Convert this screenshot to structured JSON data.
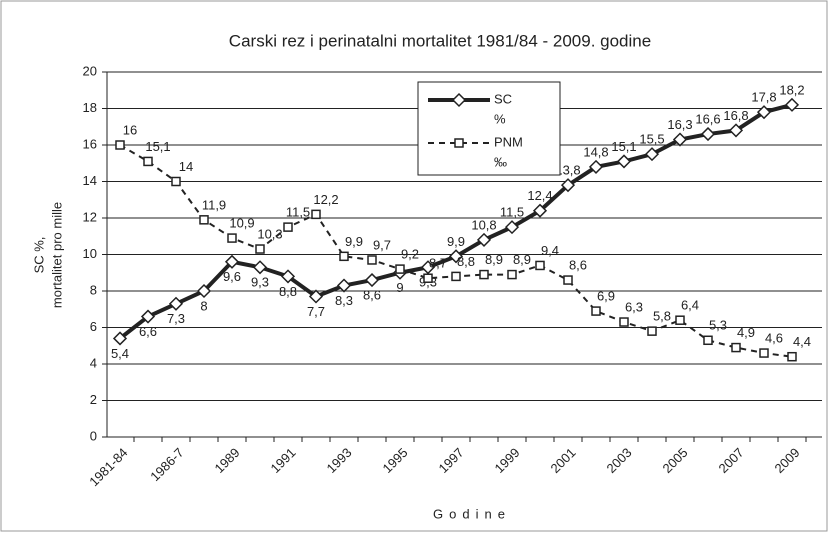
{
  "chart_data": {
    "type": "line",
    "title": "Carski rez i perinatalni mortalitet 1981/84 - 2009. godine",
    "x_label": "Godine",
    "y_label": [
      "SC  %,",
      "mortalitet pro mille"
    ],
    "categories": [
      "1981-84",
      null,
      "1986-7",
      null,
      "1989",
      null,
      "1991",
      null,
      "1993",
      null,
      "1995",
      null,
      "1997",
      null,
      "1999",
      null,
      "2001",
      null,
      "2003",
      null,
      "2005",
      null,
      "2007",
      null,
      "2009"
    ],
    "series": [
      {
        "name": "SC %",
        "legend_label": [
          "SC",
          "%"
        ],
        "color": "#222222",
        "dashed": false,
        "marker": "diamond",
        "values": [
          5.4,
          6.6,
          7.3,
          8,
          9.6,
          9.3,
          8.8,
          7.7,
          8.3,
          8.6,
          9,
          9.3,
          9.9,
          10.8,
          11.5,
          12.4,
          13.8,
          14.8,
          15.1,
          15.5,
          16.3,
          16.6,
          16.8,
          17.8,
          18.2
        ],
        "value_labels": [
          "5,4",
          "6,6",
          "7,3",
          "8",
          "9,6",
          "9,3",
          "8,8",
          "7,7",
          "8,3",
          "8,6",
          "9",
          "9,3",
          "9,9",
          "10,8",
          "11,5",
          "12,4",
          "13,8",
          "14,8",
          "15,1",
          "15,5",
          "16,3",
          "16,6",
          "16,8",
          "17,8",
          "18,2"
        ]
      },
      {
        "name": "PNM ‰",
        "legend_label": [
          "PNM",
          "‰"
        ],
        "color": "#222222",
        "dashed": true,
        "marker": "square",
        "values": [
          16,
          15.1,
          14,
          11.9,
          10.9,
          10.3,
          11.5,
          12.2,
          9.9,
          9.7,
          9.2,
          8.7,
          8.8,
          8.9,
          8.9,
          9.4,
          8.6,
          6.9,
          6.3,
          5.8,
          6.4,
          5.3,
          4.9,
          4.6,
          4.4
        ],
        "value_labels": [
          "16",
          "15,1",
          "14",
          "11,9",
          "10,9",
          "10,3",
          "11,5",
          "12,2",
          "9,9",
          "9,7",
          "9,2",
          "8,7",
          "8,8",
          "8,9",
          "8,9",
          "9,4",
          "8,6",
          "6,9",
          "6,3",
          "5,8",
          "6,4",
          "5,3",
          "4,9",
          "4,6",
          "4,4"
        ]
      }
    ],
    "ylim": [
      0,
      20
    ],
    "yticks": [
      0,
      2,
      4,
      6,
      8,
      10,
      12,
      14,
      16,
      18,
      20
    ],
    "grid": true
  }
}
